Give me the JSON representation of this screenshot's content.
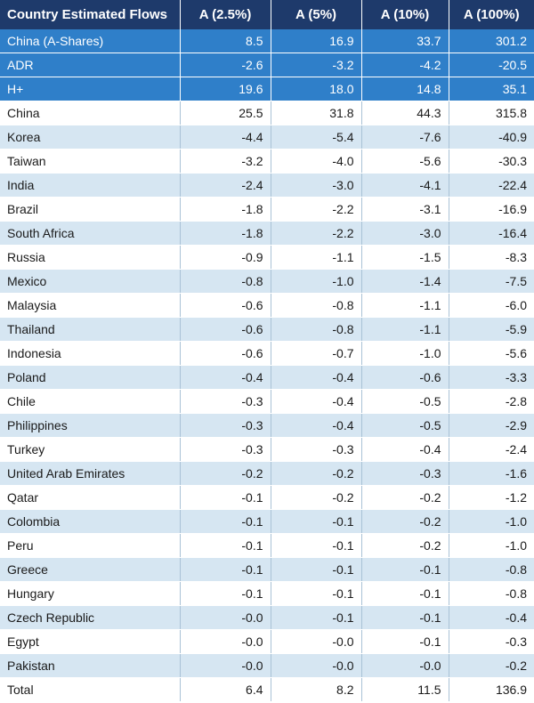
{
  "table": {
    "columns": [
      "Country Estimated Flows",
      "A (2.5%)",
      "A (5%)",
      "A (10%)",
      "A (100%)"
    ],
    "highlight_rows": [
      {
        "name": "China (A-Shares)",
        "values": [
          "8.5",
          "16.9",
          "33.7",
          "301.2"
        ]
      },
      {
        "name": "ADR",
        "values": [
          "-2.6",
          "-3.2",
          "-4.2",
          "-20.5"
        ]
      },
      {
        "name": "H+",
        "values": [
          "19.6",
          "18.0",
          "14.8",
          "35.1"
        ]
      }
    ],
    "rows": [
      {
        "name": "China",
        "values": [
          "25.5",
          "31.8",
          "44.3",
          "315.8"
        ]
      },
      {
        "name": "Korea",
        "values": [
          "-4.4",
          "-5.4",
          "-7.6",
          "-40.9"
        ]
      },
      {
        "name": "Taiwan",
        "values": [
          "-3.2",
          "-4.0",
          "-5.6",
          "-30.3"
        ]
      },
      {
        "name": "India",
        "values": [
          "-2.4",
          "-3.0",
          "-4.1",
          "-22.4"
        ]
      },
      {
        "name": "Brazil",
        "values": [
          "-1.8",
          "-2.2",
          "-3.1",
          "-16.9"
        ]
      },
      {
        "name": "South Africa",
        "values": [
          "-1.8",
          "-2.2",
          "-3.0",
          "-16.4"
        ]
      },
      {
        "name": "Russia",
        "values": [
          "-0.9",
          "-1.1",
          "-1.5",
          "-8.3"
        ]
      },
      {
        "name": "Mexico",
        "values": [
          "-0.8",
          "-1.0",
          "-1.4",
          "-7.5"
        ]
      },
      {
        "name": "Malaysia",
        "values": [
          "-0.6",
          "-0.8",
          "-1.1",
          "-6.0"
        ]
      },
      {
        "name": "Thailand",
        "values": [
          "-0.6",
          "-0.8",
          "-1.1",
          "-5.9"
        ]
      },
      {
        "name": "Indonesia",
        "values": [
          "-0.6",
          "-0.7",
          "-1.0",
          "-5.6"
        ]
      },
      {
        "name": "Poland",
        "values": [
          "-0.4",
          "-0.4",
          "-0.6",
          "-3.3"
        ]
      },
      {
        "name": "Chile",
        "values": [
          "-0.3",
          "-0.4",
          "-0.5",
          "-2.8"
        ]
      },
      {
        "name": "Philippines",
        "values": [
          "-0.3",
          "-0.4",
          "-0.5",
          "-2.9"
        ]
      },
      {
        "name": "Turkey",
        "values": [
          "-0.3",
          "-0.3",
          "-0.4",
          "-2.4"
        ]
      },
      {
        "name": "United Arab Emirates",
        "values": [
          "-0.2",
          "-0.2",
          "-0.3",
          "-1.6"
        ]
      },
      {
        "name": "Qatar",
        "values": [
          "-0.1",
          "-0.2",
          "-0.2",
          "-1.2"
        ]
      },
      {
        "name": "Colombia",
        "values": [
          "-0.1",
          "-0.1",
          "-0.2",
          "-1.0"
        ]
      },
      {
        "name": "Peru",
        "values": [
          "-0.1",
          "-0.1",
          "-0.2",
          "-1.0"
        ]
      },
      {
        "name": "Greece",
        "values": [
          "-0.1",
          "-0.1",
          "-0.1",
          "-0.8"
        ]
      },
      {
        "name": "Hungary",
        "values": [
          "-0.1",
          "-0.1",
          "-0.1",
          "-0.8"
        ]
      },
      {
        "name": "Czech Republic",
        "values": [
          "-0.0",
          "-0.1",
          "-0.1",
          "-0.4"
        ]
      },
      {
        "name": "Egypt",
        "values": [
          "-0.0",
          "-0.0",
          "-0.1",
          "-0.3"
        ]
      },
      {
        "name": "Pakistan",
        "values": [
          "-0.0",
          "-0.0",
          "-0.0",
          "-0.2"
        ]
      }
    ],
    "total": {
      "name": "Total",
      "values": [
        "6.4",
        "8.2",
        "11.5",
        "136.9"
      ]
    }
  },
  "colors": {
    "header_bg": "#1e3a6b",
    "highlight_bg": "#2f7fc9",
    "stripe_bg": "#d6e6f2"
  }
}
